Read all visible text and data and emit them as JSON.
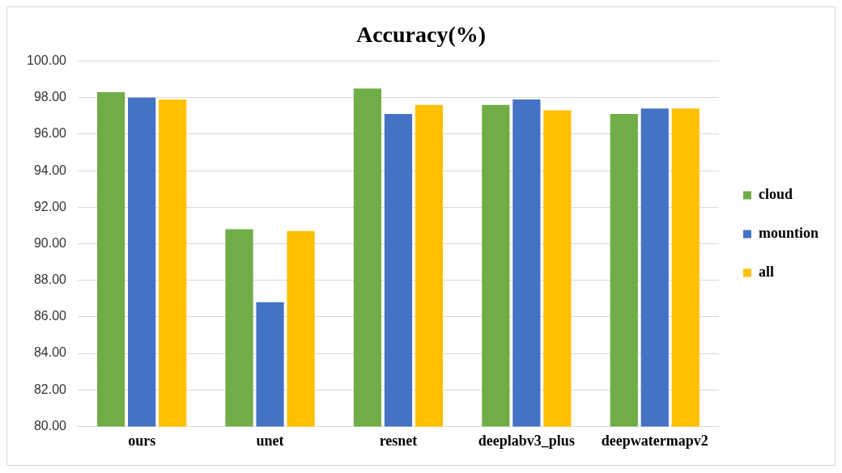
{
  "chart_data": {
    "type": "bar",
    "title": "Accuracy(%)",
    "categories": [
      "ours",
      "unet",
      "resnet",
      "deeplabv3_plus",
      "deepwatermapv2"
    ],
    "series": [
      {
        "name": "cloud",
        "color": "#70ad47",
        "values": [
          98.3,
          90.8,
          98.5,
          97.6,
          97.1
        ]
      },
      {
        "name": "mountion",
        "color": "#4472c4",
        "values": [
          98.0,
          86.8,
          97.1,
          97.9,
          97.4
        ]
      },
      {
        "name": "all",
        "color": "#ffc000",
        "values": [
          97.9,
          90.7,
          97.6,
          97.3,
          97.4
        ]
      }
    ],
    "ylim": [
      80,
      100
    ],
    "yticks": [
      {
        "value": 80,
        "label": "80.00"
      },
      {
        "value": 82,
        "label": "82.00"
      },
      {
        "value": 84,
        "label": "84.00"
      },
      {
        "value": 86,
        "label": "86.00"
      },
      {
        "value": 88,
        "label": "88.00"
      },
      {
        "value": 90,
        "label": "90.00"
      },
      {
        "value": 92,
        "label": "92.00"
      },
      {
        "value": 94,
        "label": "94.00"
      },
      {
        "value": 96,
        "label": "96.00"
      },
      {
        "value": 98,
        "label": "98.00"
      },
      {
        "value": 100,
        "label": "100.00"
      }
    ],
    "grid": "y",
    "legend": "right"
  }
}
